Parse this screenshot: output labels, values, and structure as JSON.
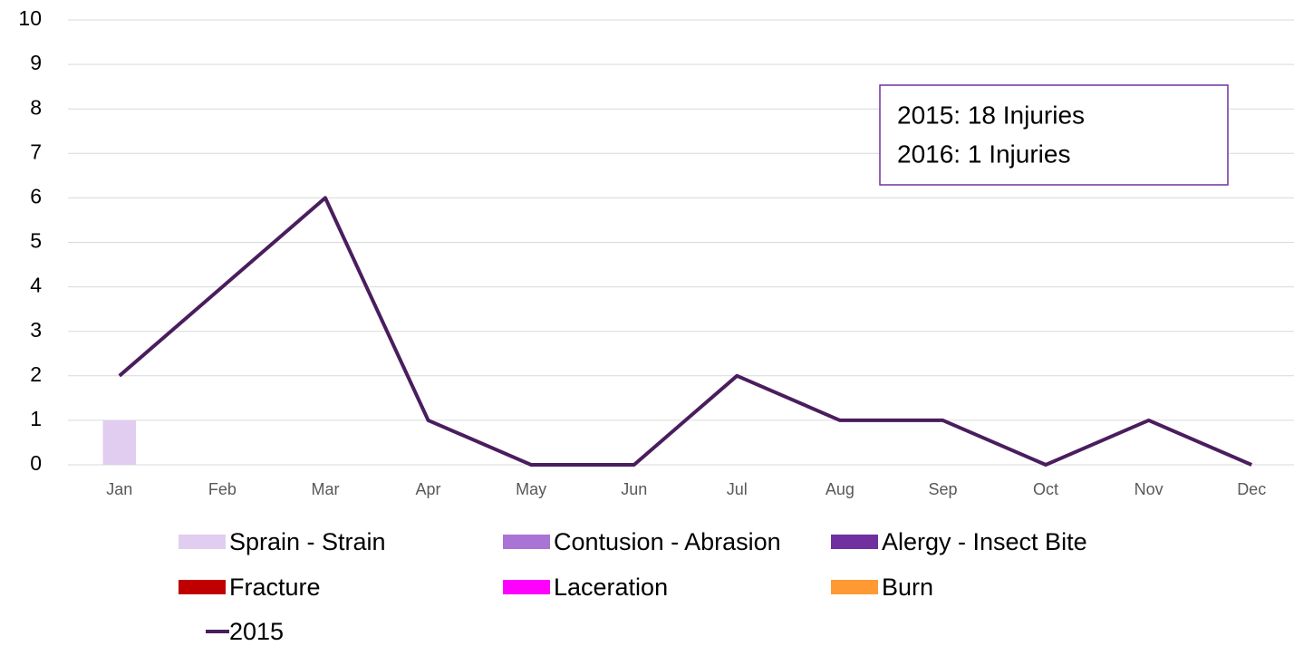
{
  "chart_data": {
    "type": "combo",
    "categories": [
      "Jan",
      "Feb",
      "Mar",
      "Apr",
      "May",
      "Jun",
      "Jul",
      "Aug",
      "Sep",
      "Oct",
      "Nov",
      "Dec"
    ],
    "series": [
      {
        "name": "Sprain - Strain",
        "type": "bar",
        "color": "#e0cdf0",
        "values": [
          1,
          0,
          0,
          0,
          0,
          0,
          0,
          0,
          0,
          0,
          0,
          0
        ]
      },
      {
        "name": "Contusion - Abrasion",
        "type": "bar",
        "color": "#a974d5",
        "values": [
          0,
          0,
          0,
          0,
          0,
          0,
          0,
          0,
          0,
          0,
          0,
          0
        ]
      },
      {
        "name": "Alergy - Insect Bite",
        "type": "bar",
        "color": "#7030a0",
        "values": [
          0,
          0,
          0,
          0,
          0,
          0,
          0,
          0,
          0,
          0,
          0,
          0
        ]
      },
      {
        "name": "Fracture",
        "type": "bar",
        "color": "#c00000",
        "values": [
          0,
          0,
          0,
          0,
          0,
          0,
          0,
          0,
          0,
          0,
          0,
          0
        ]
      },
      {
        "name": "Laceration",
        "type": "bar",
        "color": "#ff00ff",
        "values": [
          0,
          0,
          0,
          0,
          0,
          0,
          0,
          0,
          0,
          0,
          0,
          0
        ]
      },
      {
        "name": "Burn",
        "type": "bar",
        "color": "#ff9933",
        "values": [
          0,
          0,
          0,
          0,
          0,
          0,
          0,
          0,
          0,
          0,
          0,
          0
        ]
      },
      {
        "name": "2015",
        "type": "line",
        "color": "#4a1d5e",
        "values": [
          2,
          4,
          6,
          1,
          0,
          0,
          2,
          1,
          1,
          0,
          1,
          0
        ]
      }
    ],
    "annotations": [
      "2015: 18 Injuries",
      "2016: 1 Injuries"
    ],
    "ylim": [
      0,
      10
    ],
    "yticks": [
      0,
      1,
      2,
      3,
      4,
      5,
      6,
      7,
      8,
      9,
      10
    ],
    "grid": true,
    "stacked": true
  }
}
